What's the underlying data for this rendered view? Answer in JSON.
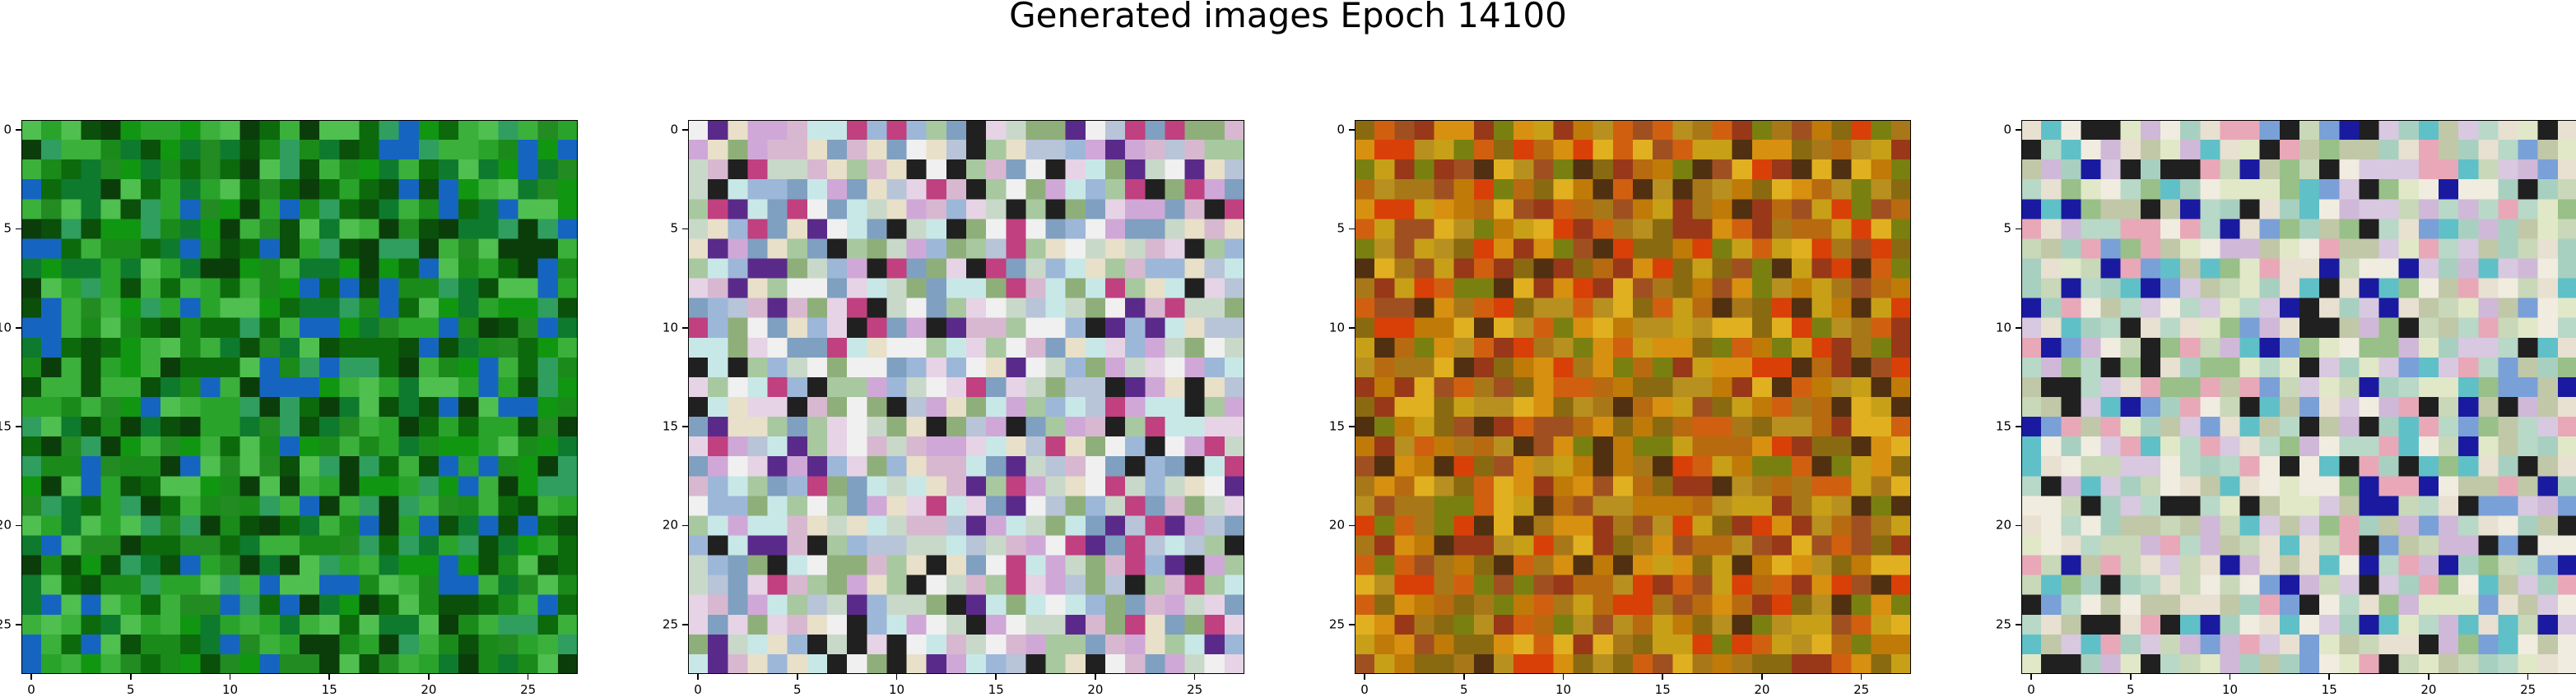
{
  "title": "Generated images Epoch 14100",
  "grid_size": 28,
  "x_ticks": [
    "0",
    "5",
    "10",
    "15",
    "20",
    "25"
  ],
  "y_ticks": [
    "0",
    "5",
    "10",
    "15",
    "20",
    "25"
  ],
  "panels": [
    {
      "name": "green",
      "base": "#1f8f1f",
      "palette": [
        "#0c6a0c",
        "#1a8a1a",
        "#2aa32a",
        "#119611",
        "#0a4f0a",
        "#3bb03b",
        "#228b22",
        "#0e7a2e",
        "#4fbf4f",
        "#0b3d0b",
        "#2f9e5f",
        "#1565c0"
      ]
    },
    {
      "name": "pastel",
      "base": "#c8c8d8",
      "palette": [
        "#e6d3e6",
        "#c9d9c9",
        "#b8c4d8",
        "#d8b8d0",
        "#a8c8a0",
        "#e8e0c8",
        "#9db7d9",
        "#d0a8d8",
        "#f0f0f0",
        "#8faf7a",
        "#c04080",
        "#5a2a8a",
        "#202020",
        "#7fa0c0",
        "#c8e8e8"
      ]
    },
    {
      "name": "orange",
      "base": "#c88a10",
      "palette": [
        "#c07a08",
        "#d89010",
        "#b86a10",
        "#a87818",
        "#c8a018",
        "#d06010",
        "#8a6a10",
        "#b89020",
        "#e0b020",
        "#983818",
        "#7a8010",
        "#d84008",
        "#503010",
        "#a05020"
      ]
    },
    {
      "name": "light",
      "base": "#d8dcc8",
      "palette": [
        "#e0e8c8",
        "#c8d8b8",
        "#d8c8e0",
        "#b8d8c8",
        "#e8e0d0",
        "#c0c8a8",
        "#d0b8d8",
        "#a8d0c0",
        "#f0ece0",
        "#98c088",
        "#e8a8b8",
        "#7aa0d8",
        "#202020",
        "#1a1aa0",
        "#60c0c8"
      ]
    }
  ]
}
